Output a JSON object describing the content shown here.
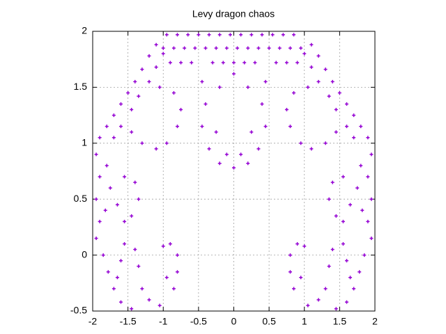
{
  "chart_data": {
    "type": "scatter",
    "title": "Levy dragon chaos",
    "color": "#9400d3",
    "grid": true,
    "xlim": [
      -2,
      2
    ],
    "ylim": [
      -0.5,
      2
    ],
    "xticks": [
      -2,
      -1.5,
      -1,
      -0.5,
      0,
      0.5,
      1,
      1.5,
      2
    ],
    "yticks": [
      -0.5,
      0,
      0.5,
      1,
      1.5,
      2
    ],
    "x": [
      -0.95,
      -0.8,
      -0.65,
      -0.5,
      -0.35,
      -0.2,
      -0.05,
      0.1,
      0.25,
      0.4,
      0.55,
      0.7,
      0.85,
      -1.0,
      -0.85,
      -0.7,
      -0.55,
      -0.4,
      -0.25,
      -0.1,
      0.05,
      0.2,
      0.35,
      0.5,
      0.65,
      0.8,
      0.95,
      -0.9,
      -0.75,
      -0.6,
      -0.3,
      -0.15,
      0,
      0.15,
      0.3,
      0.6,
      0.75,
      0.9,
      -1.1,
      -1.2,
      -1.3,
      -1.4,
      -1.5,
      -1.6,
      -1.7,
      -1.8,
      -1.9,
      -1.0,
      -1.1,
      -1.2,
      -1.35,
      -1.45,
      -1.6,
      -1.7,
      -1.05,
      -0.85,
      -0.75,
      -0.8,
      -0.95,
      -1.1,
      -1.3,
      -1.45,
      -1.95,
      -1.9,
      -1.95,
      -1.9,
      -1.95,
      -1.8,
      -1.82,
      -1.75,
      -1.55,
      -1.4,
      -1.35,
      -1.45,
      -1.55,
      -1.65,
      -1.85,
      -1.78,
      -1.7,
      -1.6,
      -1.45,
      -1.55,
      -1.6,
      -1.65,
      -1.3,
      -1.2,
      -1.05,
      -0.85,
      -0.8,
      -0.8,
      -0.9,
      -1.0,
      -1.35,
      -1.4,
      -0.95,
      1.1,
      1.2,
      1.3,
      1.4,
      1.5,
      1.6,
      1.7,
      1.8,
      1.9,
      1.0,
      1.1,
      1.2,
      1.35,
      1.45,
      1.6,
      1.7,
      1.05,
      0.85,
      0.75,
      0.8,
      0.95,
      1.1,
      1.3,
      1.45,
      1.95,
      1.9,
      1.95,
      1.9,
      1.95,
      1.8,
      1.82,
      1.75,
      1.55,
      1.4,
      1.35,
      1.45,
      1.55,
      1.65,
      1.85,
      1.78,
      1.7,
      1.6,
      1.45,
      1.55,
      1.6,
      1.65,
      1.3,
      1.2,
      1.05,
      0.85,
      0.8,
      0.8,
      0.9,
      1.0,
      1.35,
      1.4,
      0.95,
      -0.45,
      -0.4,
      -0.45,
      -0.35,
      -0.2,
      0,
      0.2,
      0.35,
      0.45,
      0.4,
      0.45,
      -0.2,
      0.2,
      0,
      -0.25,
      0.25,
      -0.1,
      0.1
    ],
    "values": [
      1.97,
      1.97,
      1.97,
      1.97,
      1.97,
      1.97,
      1.97,
      1.97,
      1.97,
      1.97,
      1.97,
      1.97,
      1.97,
      1.85,
      1.85,
      1.85,
      1.85,
      1.85,
      1.85,
      1.85,
      1.85,
      1.85,
      1.85,
      1.85,
      1.85,
      1.85,
      1.85,
      1.72,
      1.72,
      1.72,
      1.72,
      1.72,
      1.72,
      1.72,
      1.72,
      1.72,
      1.72,
      1.72,
      1.88,
      1.78,
      1.66,
      1.55,
      1.45,
      1.35,
      1.25,
      1.15,
      1.05,
      1.8,
      1.68,
      1.55,
      1.42,
      1.3,
      1.15,
      1.05,
      1.5,
      1.45,
      1.3,
      1.15,
      1.0,
      0.95,
      1.0,
      1.1,
      0.9,
      0.7,
      0.5,
      0.3,
      0.15,
      0.8,
      0.4,
      0.6,
      0.7,
      0.65,
      0.5,
      0.35,
      0.3,
      0.45,
      0.0,
      -0.15,
      -0.3,
      -0.42,
      -0.48,
      0.1,
      -0.05,
      -0.2,
      -0.3,
      -0.4,
      -0.45,
      -0.3,
      -0.15,
      0.0,
      0.1,
      0.08,
      -0.1,
      0.05,
      -0.2,
      1.88,
      1.78,
      1.66,
      1.55,
      1.45,
      1.35,
      1.25,
      1.15,
      1.05,
      1.8,
      1.68,
      1.55,
      1.42,
      1.3,
      1.15,
      1.05,
      1.5,
      1.45,
      1.3,
      1.15,
      1.0,
      0.95,
      1.0,
      1.1,
      0.9,
      0.7,
      0.5,
      0.3,
      0.15,
      0.8,
      0.4,
      0.6,
      0.7,
      0.65,
      0.5,
      0.35,
      0.3,
      0.45,
      0.0,
      -0.15,
      -0.3,
      -0.42,
      -0.48,
      0.1,
      -0.05,
      -0.2,
      -0.3,
      -0.4,
      -0.45,
      -0.3,
      -0.15,
      0.0,
      0.1,
      0.08,
      -0.1,
      0.05,
      -0.2,
      1.55,
      1.35,
      1.15,
      0.95,
      0.82,
      0.78,
      0.82,
      0.95,
      1.15,
      1.35,
      1.55,
      1.5,
      1.5,
      1.62,
      1.1,
      1.1,
      0.9,
      0.9
    ]
  }
}
